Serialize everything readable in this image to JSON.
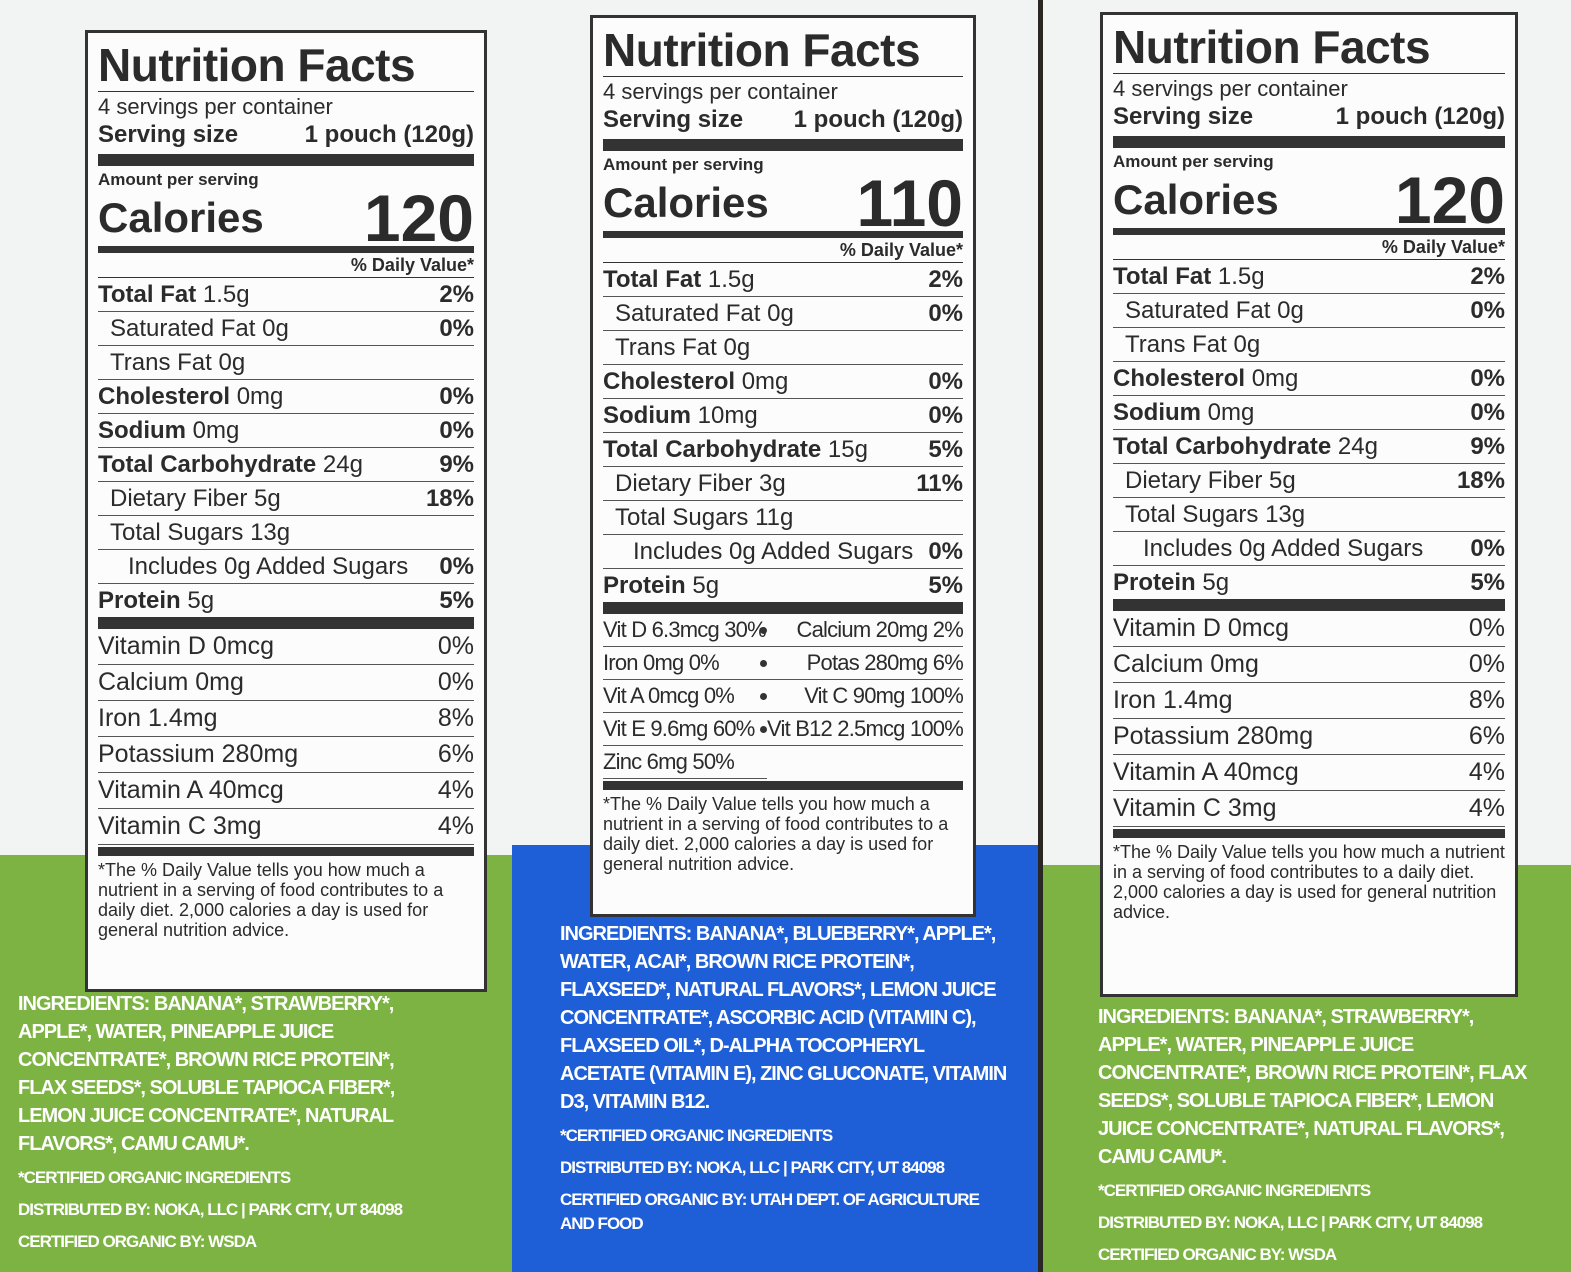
{
  "labels": [
    {
      "title": "Nutrition Facts",
      "servings": "4 servings per container",
      "serving_size_label": "Serving size",
      "serving_size": "1 pouch (120g)",
      "amount_per_serving": "Amount per serving",
      "calories_label": "Calories",
      "calories": 120,
      "dv_header": "% Daily Value*",
      "nutrients": [
        {
          "name": "Total Fat",
          "amount": "1.5g",
          "dv": "2%"
        },
        {
          "name": "Saturated Fat",
          "amount": "0g",
          "dv": "0%"
        },
        {
          "name": "Trans Fat",
          "amount": "0g"
        },
        {
          "name": "Cholesterol",
          "amount": "0mg",
          "dv": "0%"
        },
        {
          "name": "Sodium",
          "amount": "0mg",
          "dv": "0%"
        },
        {
          "name": "Total Carbohydrate",
          "amount": "24g",
          "dv": "9%"
        },
        {
          "name": "Dietary Fiber",
          "amount": "5g",
          "dv": "18%"
        },
        {
          "name": "Total Sugars",
          "amount": "13g"
        },
        {
          "name": "Includes 0g Added Sugars",
          "dv": "0%"
        },
        {
          "name": "Protein",
          "amount": "5g",
          "dv": "5%"
        }
      ],
      "vitamins": [
        {
          "name": "Vitamin D 0mcg",
          "dv": "0%"
        },
        {
          "name": "Calcium 0mg",
          "dv": "0%"
        },
        {
          "name": "Iron 1.4mg",
          "dv": "8%"
        },
        {
          "name": "Potassium 280mg",
          "dv": "6%"
        },
        {
          "name": "Vitamin A 40mcg",
          "dv": "4%"
        },
        {
          "name": "Vitamin C 3mg",
          "dv": "4%"
        }
      ],
      "footnote": "*The % Daily Value tells you how much a nutrient in a serving of food contributes to a daily diet. 2,000 calories a day is used for general nutrition advice.",
      "ingredients": "INGREDIENTS: BANANA*, STRAWBERRY*, APPLE*, WATER, PINEAPPLE JUICE CONCENTRATE*, BROWN RICE PROTEIN*, FLAX SEEDS*, SOLUBLE TAPIOCA FIBER*, LEMON JUICE CONCENTRATE*, NATURAL FLAVORS*, CAMU CAMU*.",
      "certified": "*CERTIFIED ORGANIC INGREDIENTS",
      "distributed": "DISTRIBUTED BY: NOKA, LLC | PARK CITY, UT 84098",
      "certified_by": "CERTIFIED ORGANIC BY: WSDA"
    },
    {
      "title": "Nutrition Facts",
      "servings": "4 servings per container",
      "serving_size_label": "Serving size",
      "serving_size": "1 pouch (120g)",
      "amount_per_serving": "Amount per serving",
      "calories_label": "Calories",
      "calories": 110,
      "dv_header": "% Daily Value*",
      "nutrients": [
        {
          "name": "Total Fat",
          "amount": "1.5g",
          "dv": "2%"
        },
        {
          "name": "Saturated Fat",
          "amount": "0g",
          "dv": "0%"
        },
        {
          "name": "Trans Fat",
          "amount": "0g"
        },
        {
          "name": "Cholesterol",
          "amount": "0mg",
          "dv": "0%"
        },
        {
          "name": "Sodium",
          "amount": "10mg",
          "dv": "0%"
        },
        {
          "name": "Total Carbohydrate",
          "amount": "15g",
          "dv": "5%"
        },
        {
          "name": "Dietary Fiber",
          "amount": "3g",
          "dv": "11%"
        },
        {
          "name": "Total Sugars",
          "amount": "11g"
        },
        {
          "name": "Includes 0g Added Sugars",
          "dv": "0%"
        },
        {
          "name": "Protein",
          "amount": "5g",
          "dv": "5%"
        }
      ],
      "vitamins": [
        "Vit D 6.3mcg 30%",
        "Calcium 20mg 2%",
        "Iron 0mg 0%",
        "Potas 280mg 6%",
        "Vit A 0mcg 0%",
        "Vit C 90mg 100%",
        "Vit E 9.6mg 60%",
        "Vit B12 2.5mcg 100%",
        "Zinc 6mg 50%"
      ],
      "footnote": "*The % Daily Value tells you how much a nutrient in a serving of food contributes to a daily diet. 2,000 calories a day is used for general nutrition advice.",
      "ingredients": "INGREDIENTS: BANANA*, BLUEBERRY*, APPLE*, WATER, ACAI*, BROWN RICE PROTEIN*, FLAXSEED*, NATURAL FLAVORS*, LEMON JUICE CONCENTRATE*, ASCORBIC ACID (VITAMIN C), FLAXSEED OIL*, D-ALPHA TOCOPHERYL ACETATE (VITAMIN E), ZINC GLUCONATE, VITAMIN D3, VITAMIN B12.",
      "certified": "*CERTIFIED ORGANIC INGREDIENTS",
      "distributed": "DISTRIBUTED BY: NOKA, LLC | PARK CITY, UT 84098",
      "certified_by": "CERTIFIED ORGANIC BY: UTAH DEPT. OF AGRICULTURE AND FOOD"
    },
    {
      "title": "Nutrition Facts",
      "servings": "4 servings per container",
      "serving_size_label": "Serving size",
      "serving_size": "1 pouch (120g)",
      "amount_per_serving": "Amount per serving",
      "calories_label": "Calories",
      "calories": 120,
      "dv_header": "% Daily Value*",
      "nutrients": [
        {
          "name": "Total Fat",
          "amount": "1.5g",
          "dv": "2%"
        },
        {
          "name": "Saturated Fat",
          "amount": "0g",
          "dv": "0%"
        },
        {
          "name": "Trans Fat",
          "amount": "0g"
        },
        {
          "name": "Cholesterol",
          "amount": "0mg",
          "dv": "0%"
        },
        {
          "name": "Sodium",
          "amount": "0mg",
          "dv": "0%"
        },
        {
          "name": "Total Carbohydrate",
          "amount": "24g",
          "dv": "9%"
        },
        {
          "name": "Dietary Fiber",
          "amount": "5g",
          "dv": "18%"
        },
        {
          "name": "Total Sugars",
          "amount": "13g"
        },
        {
          "name": "Includes 0g Added Sugars",
          "dv": "0%"
        },
        {
          "name": "Protein",
          "amount": "5g",
          "dv": "5%"
        }
      ],
      "vitamins": [
        {
          "name": "Vitamin D 0mcg",
          "dv": "0%"
        },
        {
          "name": "Calcium 0mg",
          "dv": "0%"
        },
        {
          "name": "Iron 1.4mg",
          "dv": "8%"
        },
        {
          "name": "Potassium 280mg",
          "dv": "6%"
        },
        {
          "name": "Vitamin A 40mcg",
          "dv": "4%"
        },
        {
          "name": "Vitamin C 3mg",
          "dv": "4%"
        }
      ],
      "footnote": "*The % Daily Value tells you how much a nutrient in a serving of food contributes to a daily diet. 2,000 calories a day is used for general nutrition advice.",
      "ingredients": "INGREDIENTS: BANANA*, STRAWBERRY*, APPLE*, WATER, PINEAPPLE JUICE CONCENTRATE*, BROWN RICE PROTEIN*, FLAX SEEDS*, SOLUBLE TAPIOCA FIBER*, LEMON JUICE CONCENTRATE*, NATURAL FLAVORS*, CAMU CAMU*.",
      "certified": "*CERTIFIED ORGANIC INGREDIENTS",
      "distributed": "DISTRIBUTED BY: NOKA, LLC | PARK CITY, UT 84098",
      "certified_by": "CERTIFIED ORGANIC BY: WSDA"
    }
  ]
}
